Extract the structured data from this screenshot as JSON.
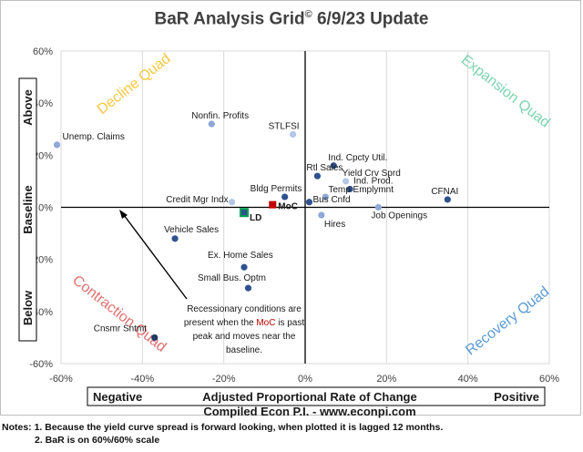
{
  "title": "BaR Analysis Grid",
  "title_symbol": "©",
  "title_suffix": " 6/9/23 Update",
  "chart_data": {
    "type": "scatter",
    "xlim": [
      -60,
      60
    ],
    "ylim": [
      -60,
      60
    ],
    "x_ticks": [
      "-60%",
      "-40%",
      "-20%",
      "0%",
      "20%",
      "40%",
      "60%"
    ],
    "y_ticks": [
      "60%",
      "40%",
      "20%",
      "0%",
      "-20%",
      "-40%",
      "-60%"
    ],
    "grid": "vertical only",
    "x_axis_label": "Adjusted Proportional Rate of Change",
    "x_left": "Negative",
    "x_right": "Positive",
    "y_top": "Above",
    "y_middle": "Baseline",
    "y_bottom": "Below",
    "quadrants": [
      {
        "label": "Decline Quad",
        "color": "#f5c842"
      },
      {
        "label": "Expansion Quad",
        "color": "#7dd3b0"
      },
      {
        "label": "Contraction Quad",
        "color": "#e07070"
      },
      {
        "label": "Recovery Quad",
        "color": "#5b9bd5"
      }
    ],
    "points": [
      {
        "label": "Unemp. Claims",
        "x": -61,
        "y": 24,
        "color": "#8fa8d8"
      },
      {
        "label": "Nonfin. Profits",
        "x": -23,
        "y": 32,
        "color": "#8fa8d8"
      },
      {
        "label": "STLFSI",
        "x": -3,
        "y": 28,
        "color": "#b4c7e7"
      },
      {
        "label": "Ind. Cpcty Util.",
        "x": 7,
        "y": 16,
        "color": "#2f528f"
      },
      {
        "label": "Rtl Sales",
        "x": 3,
        "y": 12,
        "color": "#2f528f"
      },
      {
        "label": "Yield Crv Sprd",
        "x": 10,
        "y": 10,
        "color": "#b4c7e7"
      },
      {
        "label": "Ind. Prod.",
        "x": 11,
        "y": 7,
        "color": "#2f528f"
      },
      {
        "label": "Temp Emplymnt",
        "x": 5,
        "y": 4,
        "color": "#8fa8d8"
      },
      {
        "label": "CFNAI",
        "x": 35,
        "y": 3,
        "color": "#2f528f"
      },
      {
        "label": "Bldg Permits",
        "x": -5,
        "y": 4,
        "color": "#2f528f"
      },
      {
        "label": "Credit Mgr Indx",
        "x": -18,
        "y": 2,
        "color": "#b4c7e7"
      },
      {
        "label": "Bus Cnfd",
        "x": 1,
        "y": 2,
        "color": "#2f528f"
      },
      {
        "label": "Job Openings",
        "x": 18,
        "y": 0,
        "color": "#8fa8d8"
      },
      {
        "label": "Hires",
        "x": 4,
        "y": -3,
        "color": "#8fa8d8"
      },
      {
        "label": "Vehicle Sales",
        "x": -32,
        "y": -12,
        "color": "#2f528f"
      },
      {
        "label": "Ex. Home Sales",
        "x": -15,
        "y": -23,
        "color": "#2f528f"
      },
      {
        "label": "Small Bus. Optm",
        "x": -14,
        "y": -31,
        "color": "#2f528f"
      },
      {
        "label": "Cnsmr Sntmt",
        "x": -37,
        "y": -50,
        "color": "#1f3864"
      }
    ],
    "special_points": [
      {
        "label": "MoC",
        "x": -8,
        "y": 1,
        "color": "#c00000"
      },
      {
        "label": "LD",
        "x": -15,
        "y": -2,
        "color": "#00a050"
      }
    ],
    "annotation": {
      "lines": [
        "Recessionary conditions are",
        "present when the",
        "MoC",
        " is past",
        "peak and moves near the",
        "baseline."
      ]
    }
  },
  "footer": "Compiled Econ P.I. - www.econpi.com",
  "notes": [
    "Notes: 1. Because the yield curve spread is forward looking, when plotted it is lagged 12 months.",
    "2. BaR is on 60%/60% scale"
  ]
}
